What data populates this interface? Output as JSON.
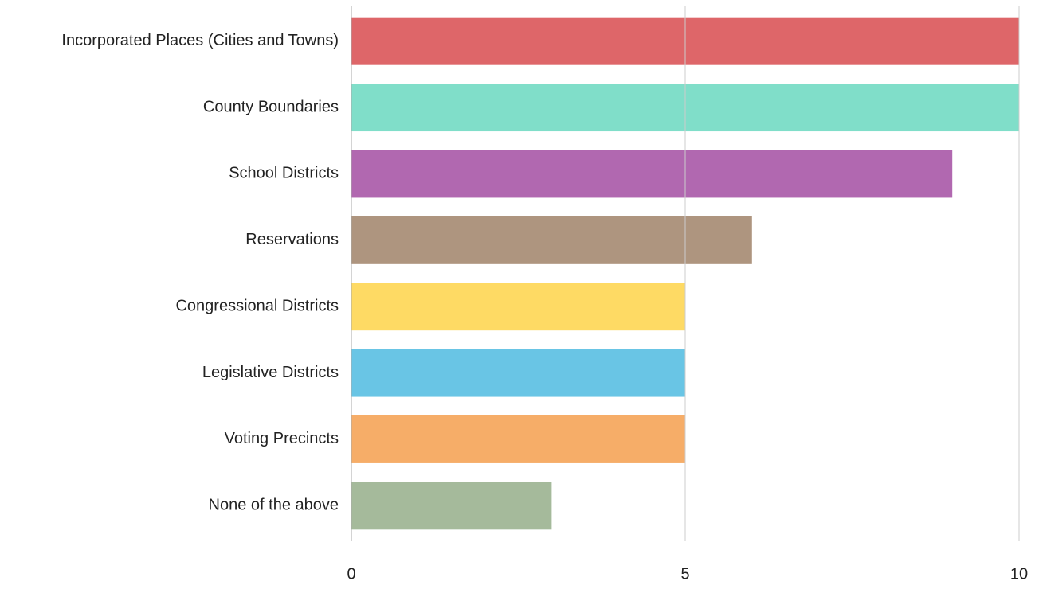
{
  "chart_data": {
    "type": "bar",
    "orientation": "horizontal",
    "categories": [
      "Incorporated Places (Cities and Towns)",
      "County Boundaries",
      "School Districts",
      "Reservations",
      "Congressional Districts",
      "Legislative Districts",
      "Voting Precincts",
      "None of the above"
    ],
    "values": [
      10,
      10,
      9,
      6,
      5,
      5,
      5,
      3
    ],
    "colors": [
      "#d84b4f",
      "#6ad8bf",
      "#a34ea2",
      "#a08368",
      "#fed449",
      "#4fbbe1",
      "#f59f4d",
      "#95ae8a"
    ],
    "xlim": [
      0,
      10
    ],
    "xticks": [
      0,
      5,
      10
    ],
    "grid": true
  }
}
